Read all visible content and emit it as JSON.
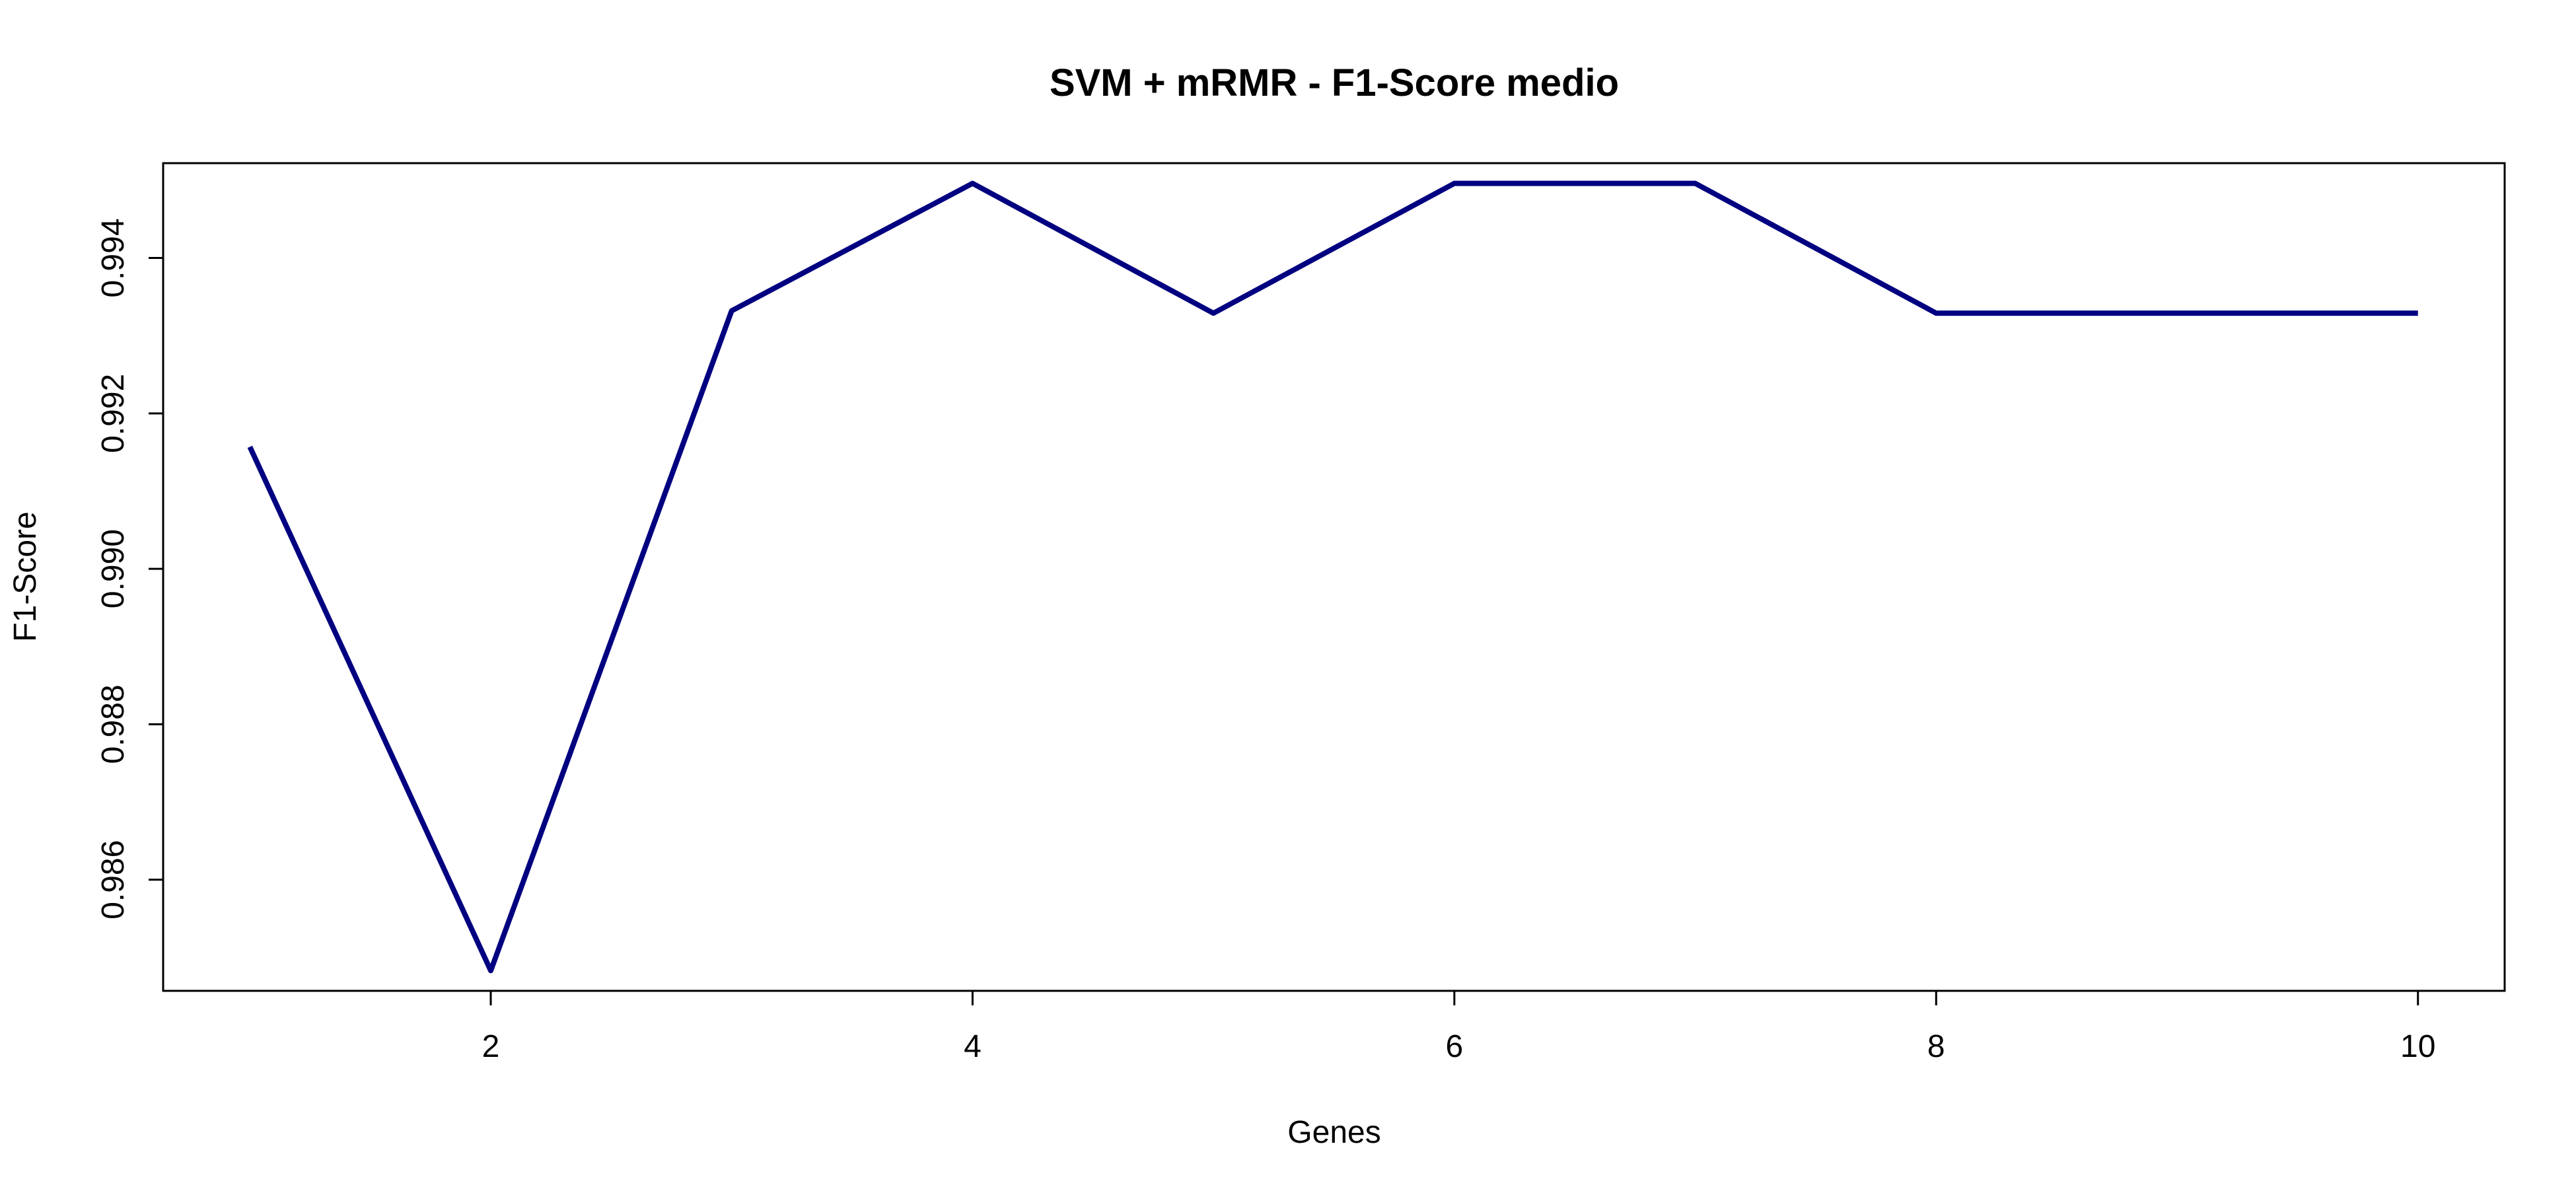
{
  "chart_data": {
    "type": "line",
    "title": "SVM + mRMR - F1-Score medio",
    "xlabel": "Genes",
    "ylabel": "F1-Score",
    "x": [
      1,
      2,
      3,
      4,
      5,
      6,
      7,
      8,
      9,
      10
    ],
    "series": [
      {
        "values": [
          0.99157,
          0.98483,
          0.99332,
          0.99496,
          0.99329,
          0.99496,
          0.99496,
          0.99329,
          0.99329,
          0.99329
        ]
      }
    ],
    "xlim": [
      0.64,
      10.36
    ],
    "ylim": [
      0.98457,
      0.99522
    ],
    "xticks": [
      2,
      4,
      6,
      8,
      10
    ],
    "yticks": [
      0.986,
      0.988,
      0.99,
      0.992,
      0.994
    ],
    "xtick_labels": [
      "2",
      "4",
      "6",
      "8",
      "10"
    ],
    "ytick_labels": [
      "0.986",
      "0.988",
      "0.990",
      "0.992",
      "0.994"
    ],
    "line_color": "#000080",
    "grid": false,
    "legend": "none"
  }
}
